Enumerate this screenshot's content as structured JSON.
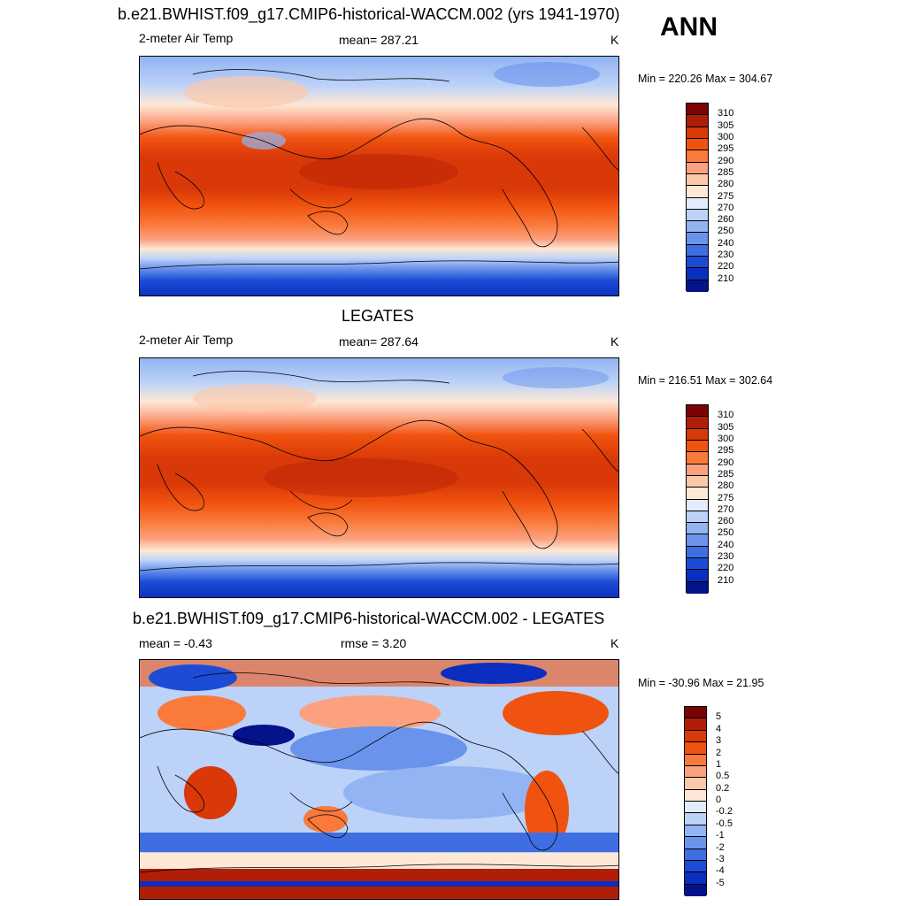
{
  "header": {
    "title": "b.e21.BWHIST.f09_g17.CMIP6-historical-WACCM.002 (yrs 1941-1970)",
    "season": "ANN"
  },
  "panels": [
    {
      "id": "model",
      "title": "",
      "left": "2-meter Air Temp",
      "center": "mean= 287.21",
      "right": "K",
      "minmax": "Min = 220.26 Max = 304.67"
    },
    {
      "id": "obs",
      "title": "LEGATES",
      "left": "2-meter Air Temp",
      "center": "mean= 287.64",
      "right": "K",
      "minmax": "Min = 216.51 Max = 302.64"
    },
    {
      "id": "diff",
      "title": "b.e21.BWHIST.f09_g17.CMIP6-historical-WACCM.002 - LEGATES",
      "left": "mean =  -0.43",
      "center": "rmse =   3.20",
      "right": "K",
      "minmax": "Min = -30.96 Max =  21.95"
    }
  ],
  "colorbars": {
    "temp": {
      "labels": [
        "310",
        "305",
        "300",
        "295",
        "290",
        "285",
        "280",
        "275",
        "270",
        "260",
        "250",
        "240",
        "230",
        "220",
        "210"
      ],
      "colors": [
        "#7a0403",
        "#b01d08",
        "#d93808",
        "#f0530f",
        "#fa7a3c",
        "#fca180",
        "#fcc8aa",
        "#fde8d6",
        "#e2ecfb",
        "#bcd2f8",
        "#92b4f2",
        "#6a93ec",
        "#3f6ee3",
        "#1c4cd6",
        "#0a2fc0",
        "#04138a"
      ]
    },
    "diff": {
      "labels": [
        "5",
        "4",
        "3",
        "2",
        "1",
        "0.5",
        "0.2",
        "0",
        "-0.2",
        "-0.5",
        "-1",
        "-2",
        "-3",
        "-4",
        "-5"
      ],
      "colors": [
        "#7a0403",
        "#b01d08",
        "#d93808",
        "#f0530f",
        "#fa7a3c",
        "#fca180",
        "#fcc8aa",
        "#fde8d6",
        "#e2ecfb",
        "#bcd2f8",
        "#92b4f2",
        "#6a93ec",
        "#3f6ee3",
        "#1c4cd6",
        "#0a2fc0",
        "#04138a"
      ]
    }
  }
}
